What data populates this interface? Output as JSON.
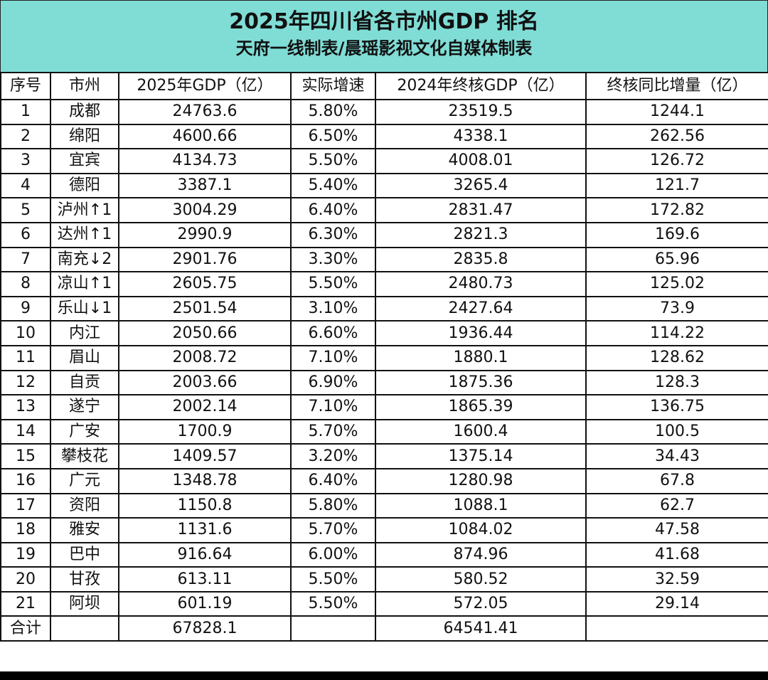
{
  "header": {
    "title": "2025年四川省各市州GDP 排名",
    "subtitle": "天府一线制表/晨瑶影视文化自媒体制表",
    "background_color": "#80ddd6"
  },
  "table": {
    "columns": [
      "序号",
      "市州",
      "2025年GDP（亿）",
      "实际增速",
      "2024年终核GDP（亿）",
      "终核同比增量（亿）"
    ],
    "rows": [
      [
        "1",
        "成都",
        "24763.6",
        "5.80%",
        "23519.5",
        "1244.1"
      ],
      [
        "2",
        "绵阳",
        "4600.66",
        "6.50%",
        "4338.1",
        "262.56"
      ],
      [
        "3",
        "宜宾",
        "4134.73",
        "5.50%",
        "4008.01",
        "126.72"
      ],
      [
        "4",
        "德阳",
        "3387.1",
        "5.40%",
        "3265.4",
        "121.7"
      ],
      [
        "5",
        "泸州↑1",
        "3004.29",
        "6.40%",
        "2831.47",
        "172.82"
      ],
      [
        "6",
        "达州↑1",
        "2990.9",
        "6.30%",
        "2821.3",
        "169.6"
      ],
      [
        "7",
        "南充↓2",
        "2901.76",
        "3.30%",
        "2835.8",
        "65.96"
      ],
      [
        "8",
        "凉山↑1",
        "2605.75",
        "5.50%",
        "2480.73",
        "125.02"
      ],
      [
        "9",
        "乐山↓1",
        "2501.54",
        "3.10%",
        "2427.64",
        "73.9"
      ],
      [
        "10",
        "内江",
        "2050.66",
        "6.60%",
        "1936.44",
        "114.22"
      ],
      [
        "11",
        "眉山",
        "2008.72",
        "7.10%",
        "1880.1",
        "128.62"
      ],
      [
        "12",
        "自贡",
        "2003.66",
        "6.90%",
        "1875.36",
        "128.3"
      ],
      [
        "13",
        "遂宁",
        "2002.14",
        "7.10%",
        "1865.39",
        "136.75"
      ],
      [
        "14",
        "广安",
        "1700.9",
        "5.70%",
        "1600.4",
        "100.5"
      ],
      [
        "15",
        "攀枝花",
        "1409.57",
        "3.20%",
        "1375.14",
        "34.43"
      ],
      [
        "16",
        "广元",
        "1348.78",
        "6.40%",
        "1280.98",
        "67.8"
      ],
      [
        "17",
        "资阳",
        "1150.8",
        "5.80%",
        "1088.1",
        "62.7"
      ],
      [
        "18",
        "雅安",
        "1131.6",
        "5.70%",
        "1084.02",
        "47.58"
      ],
      [
        "19",
        "巴中",
        "916.64",
        "6.00%",
        "874.96",
        "41.68"
      ],
      [
        "20",
        "甘孜",
        "613.11",
        "5.50%",
        "580.52",
        "32.59"
      ],
      [
        "21",
        "阿坝",
        "601.19",
        "5.50%",
        "572.05",
        "29.14"
      ]
    ],
    "total": [
      "合计",
      "",
      "67828.1",
      "",
      "64541.41",
      ""
    ]
  }
}
